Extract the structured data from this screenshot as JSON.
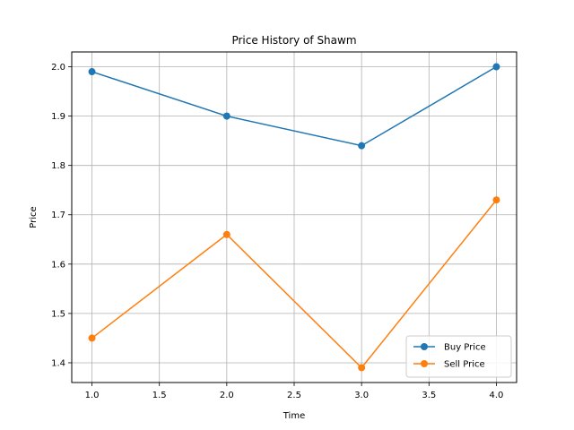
{
  "chart_data": {
    "type": "line",
    "title": "Price History of Shawm",
    "xlabel": "Time",
    "ylabel": "Price",
    "x": [
      1.0,
      2.0,
      3.0,
      4.0
    ],
    "xlim": [
      0.85,
      4.15
    ],
    "ylim": [
      1.36,
      2.03
    ],
    "xticks": [
      1.0,
      1.5,
      2.0,
      2.5,
      3.0,
      3.5,
      4.0
    ],
    "xtick_labels": [
      "1.0",
      "1.5",
      "2.0",
      "2.5",
      "3.0",
      "3.5",
      "4.0"
    ],
    "yticks": [
      1.4,
      1.5,
      1.6,
      1.7,
      1.8,
      1.9,
      2.0
    ],
    "ytick_labels": [
      "1.4",
      "1.5",
      "1.6",
      "1.7",
      "1.8",
      "1.9",
      "2.0"
    ],
    "grid": true,
    "legend_position": "bottom-right",
    "series": [
      {
        "name": "Buy Price",
        "values": [
          1.99,
          1.9,
          1.84,
          2.0
        ],
        "color": "#1f77b4",
        "marker": "circle"
      },
      {
        "name": "Sell Price",
        "values": [
          1.45,
          1.66,
          1.39,
          1.73
        ],
        "color": "#ff7f0e",
        "marker": "circle"
      }
    ]
  }
}
